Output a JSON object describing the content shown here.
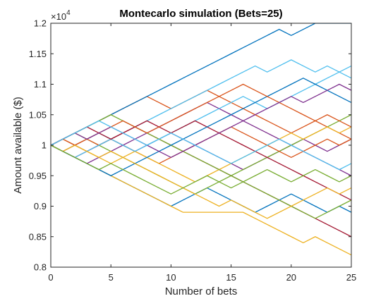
{
  "chart_data": {
    "type": "line",
    "title": "Montecarlo simulation (Bets=25)",
    "xlabel": "Number of bets",
    "ylabel": "Amount available ($)",
    "exponent_base": "×10",
    "exponent_power": "4",
    "xlim": [
      0,
      25
    ],
    "ylim": [
      8000,
      12000
    ],
    "x_ticks": [
      0,
      5,
      10,
      15,
      20,
      25
    ],
    "x_tick_labels": [
      "0",
      "5",
      "10",
      "15",
      "20",
      "25"
    ],
    "y_ticks": [
      8000,
      8500,
      9000,
      9500,
      10000,
      10500,
      11000,
      11500,
      12000
    ],
    "y_tick_labels": [
      "0.8",
      "0.85",
      "0.9",
      "0.95",
      "1",
      "1.05",
      "1.1",
      "1.15",
      "1.2"
    ],
    "grid": false,
    "legend": "none",
    "colors": [
      "#0072BD",
      "#D95319",
      "#EDB120",
      "#7E2F8E",
      "#77AC30",
      "#4DBEEE",
      "#A2142F"
    ],
    "series": [
      {
        "values": [
          10000,
          9900,
          9800,
          9700,
          9600,
          9500,
          9400,
          9300,
          9200,
          9100,
          9000,
          9100,
          9200,
          9300,
          9200,
          9100,
          9000,
          8900,
          9000,
          9100,
          9200,
          9100,
          9000,
          8900,
          9000,
          8900
        ]
      },
      {
        "values": [
          10000,
          10100,
          10200,
          10300,
          10400,
          10500,
          10600,
          10700,
          10800,
          10700,
          10600,
          10700,
          10800,
          10900,
          10800,
          10700,
          10600,
          10500,
          10400,
          10300,
          10200,
          10300,
          10400,
          10300,
          10200,
          10100
        ]
      },
      {
        "values": [
          10000,
          9900,
          9800,
          9700,
          9600,
          9500,
          9400,
          9300,
          9200,
          9100,
          9000,
          8900,
          8900,
          8900,
          8900,
          8900,
          8900,
          8800,
          8700,
          8600,
          8500,
          8400,
          8500,
          8400,
          8300,
          8200
        ]
      },
      {
        "values": [
          10000,
          10100,
          10000,
          9900,
          10000,
          10100,
          10000,
          9900,
          10000,
          10100,
          10200,
          10100,
          10000,
          9900,
          9800,
          9700,
          9600,
          9700,
          9800,
          9900,
          10000,
          10100,
          10000,
          9900,
          10000,
          10100
        ]
      },
      {
        "values": [
          10000,
          10100,
          10200,
          10100,
          10000,
          9900,
          9800,
          9700,
          9600,
          9500,
          9400,
          9300,
          9200,
          9300,
          9400,
          9500,
          9600,
          9700,
          9800,
          9900,
          10000,
          10100,
          10200,
          10300,
          10400,
          10500
        ]
      },
      {
        "values": [
          10000,
          9900,
          10000,
          10100,
          10200,
          10100,
          10200,
          10300,
          10400,
          10500,
          10600,
          10700,
          10800,
          10900,
          11000,
          11100,
          11200,
          11300,
          11200,
          11300,
          11400,
          11300,
          11200,
          11300,
          11200,
          11300
        ]
      },
      {
        "values": [
          10000,
          9900,
          9800,
          9900,
          10000,
          10100,
          10200,
          10300,
          10200,
          10100,
          10000,
          9900,
          9800,
          9700,
          9600,
          9500,
          9400,
          9300,
          9200,
          9100,
          9000,
          8900,
          8800,
          8700,
          8600,
          8500
        ]
      },
      {
        "values": [
          10000,
          10100,
          10200,
          10300,
          10400,
          10500,
          10600,
          10700,
          10800,
          10900,
          11000,
          11100,
          11200,
          11300,
          11400,
          11500,
          11600,
          11700,
          11800,
          11900,
          11800,
          11900,
          12000,
          12000,
          12000,
          12000
        ]
      },
      {
        "values": [
          10000,
          9900,
          10000,
          10100,
          10000,
          10100,
          10000,
          9900,
          9800,
          9700,
          9800,
          9900,
          10000,
          10100,
          10200,
          10300,
          10200,
          10100,
          10000,
          9900,
          9800,
          9900,
          10000,
          10100,
          10000,
          10100
        ]
      },
      {
        "values": [
          10000,
          10100,
          10000,
          9900,
          9800,
          9700,
          9800,
          9900,
          9800,
          9700,
          9600,
          9500,
          9400,
          9500,
          9600,
          9700,
          9800,
          9900,
          10000,
          10100,
          10200,
          10100,
          10200,
          10300,
          10200,
          10300
        ]
      },
      {
        "values": [
          10000,
          9900,
          9800,
          9700,
          9800,
          9900,
          10000,
          10100,
          10200,
          10300,
          10400,
          10500,
          10600,
          10700,
          10600,
          10500,
          10400,
          10300,
          10200,
          10100,
          10000,
          9900,
          9800,
          9700,
          9600,
          9500
        ]
      },
      {
        "values": [
          10000,
          10100,
          10200,
          10300,
          10400,
          10500,
          10400,
          10300,
          10200,
          10100,
          10000,
          9900,
          9800,
          9700,
          9600,
          9500,
          9400,
          9300,
          9200,
          9100,
          9000,
          8900,
          8800,
          8900,
          9000,
          9100
        ]
      },
      {
        "values": [
          10000,
          9900,
          9800,
          9900,
          10000,
          10100,
          10000,
          9900,
          10000,
          10100,
          10200,
          10300,
          10400,
          10500,
          10600,
          10700,
          10800,
          10700,
          10600,
          10700,
          10800,
          10900,
          11000,
          11100,
          11200,
          11100
        ]
      },
      {
        "values": [
          10000,
          10100,
          10200,
          10300,
          10200,
          10100,
          10200,
          10300,
          10400,
          10300,
          10200,
          10300,
          10400,
          10300,
          10200,
          10100,
          10000,
          9900,
          9800,
          9700,
          9600,
          9500,
          9400,
          9300,
          9200,
          9100
        ]
      },
      {
        "values": [
          10000,
          9900,
          9800,
          9700,
          9600,
          9500,
          9600,
          9700,
          9800,
          9900,
          10000,
          10100,
          10200,
          10300,
          10400,
          10500,
          10600,
          10700,
          10800,
          10900,
          11000,
          11100,
          11000,
          10900,
          10800,
          10700
        ]
      },
      {
        "values": [
          10000,
          10100,
          10000,
          10100,
          10200,
          10300,
          10400,
          10300,
          10200,
          10300,
          10400,
          10500,
          10600,
          10700,
          10800,
          10900,
          11000,
          10900,
          10800,
          10700,
          10600,
          10500,
          10400,
          10500,
          10400,
          10300
        ]
      },
      {
        "values": [
          10000,
          9900,
          10000,
          9900,
          9800,
          9900,
          9800,
          9700,
          9600,
          9500,
          9400,
          9300,
          9200,
          9100,
          9000,
          9100,
          9000,
          8900,
          8800,
          8900,
          9000,
          9100,
          9200,
          9300,
          9200,
          9300
        ]
      },
      {
        "values": [
          10000,
          10100,
          10200,
          10100,
          10200,
          10300,
          10200,
          10100,
          10000,
          9900,
          9800,
          9900,
          10000,
          10100,
          10200,
          10300,
          10400,
          10500,
          10600,
          10700,
          10800,
          10700,
          10800,
          10900,
          11000,
          10900
        ]
      },
      {
        "values": [
          10000,
          9900,
          9800,
          9700,
          9600,
          9700,
          9600,
          9500,
          9400,
          9300,
          9200,
          9300,
          9400,
          9500,
          9400,
          9300,
          9400,
          9500,
          9600,
          9500,
          9400,
          9500,
          9600,
          9500,
          9400,
          9500
        ]
      },
      {
        "values": [
          10000,
          10100,
          10200,
          10300,
          10400,
          10300,
          10200,
          10100,
          10000,
          10100,
          10200,
          10100,
          10000,
          9900,
          9800,
          9700,
          9800,
          9900,
          10000,
          10100,
          10000,
          9900,
          9800,
          9700,
          9600,
          9700
        ]
      }
    ]
  }
}
